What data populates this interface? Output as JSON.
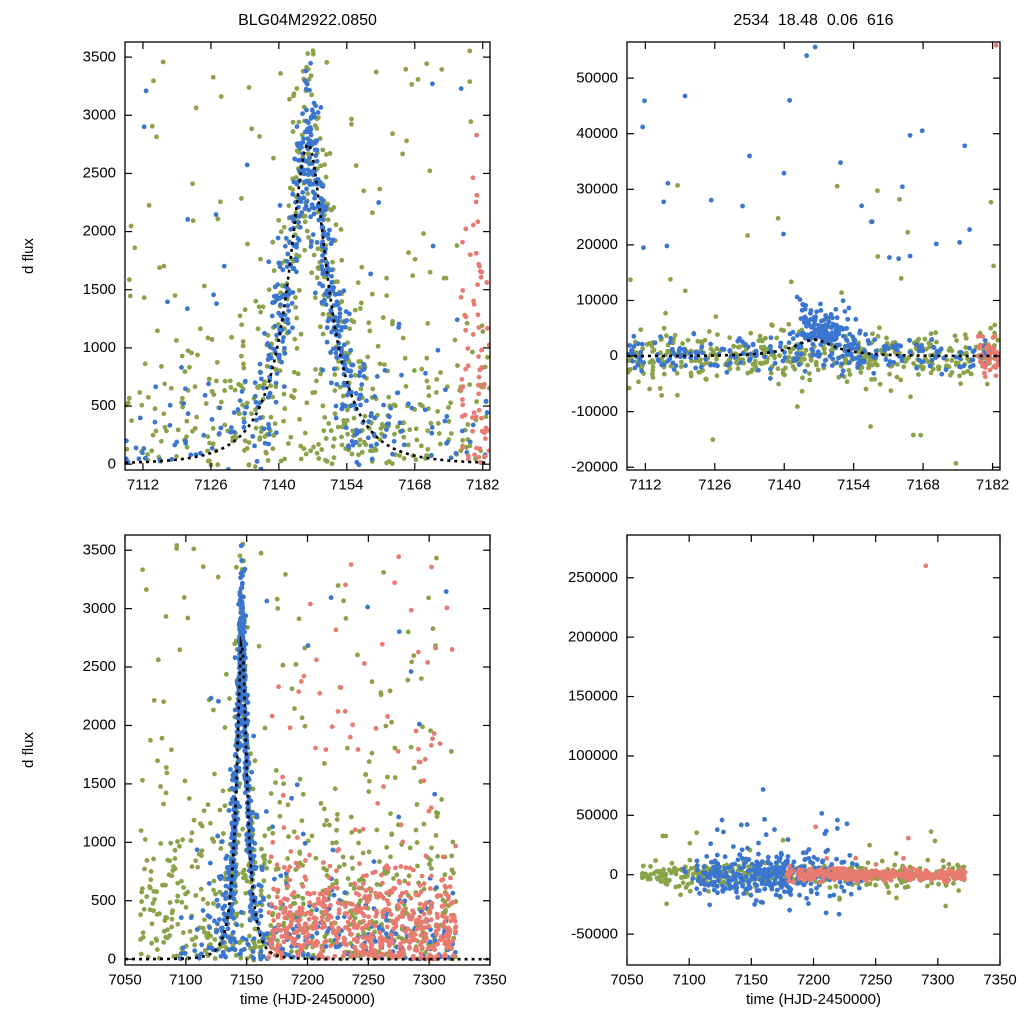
{
  "titles": {
    "top_left": "BLG04M2922.0850",
    "top_right": "2534  18.48  0.06  616"
  },
  "axis_labels": {
    "y": "d flux",
    "x": "time (HJD-2450000)"
  },
  "colors": {
    "blue": "#3a76cf",
    "green": "#8aa248",
    "red": "#e87a70",
    "model": "#000000",
    "frame": "#000000",
    "background": "#ffffff"
  },
  "render": {
    "seed": 7,
    "point_radius": 2.4
  },
  "chart_data": [
    {
      "name": "top-left",
      "type": "scatter",
      "title": "BLG04M2922.0850",
      "ylabel": "d flux",
      "xlabel": null,
      "xlim": [
        7108.3,
        7183.5
      ],
      "ylim": [
        -50,
        3630
      ],
      "xticks": [
        7112,
        7126,
        7140,
        7154,
        7168,
        7182
      ],
      "yticks": [
        0,
        500,
        1000,
        1500,
        2000,
        2500,
        3000,
        3500
      ],
      "model": {
        "t0": 7146,
        "tE": 10,
        "u0": 0.4,
        "fs": 1670,
        "draw": true
      },
      "clusters": [
        {
          "color": "green",
          "n": 250,
          "x": {
            "dist": "uniform",
            "min": 7108.5,
            "max": 7183.4
          },
          "y": {
            "dist": "absgauss",
            "sd": 620
          }
        },
        {
          "color": "green",
          "n": 95,
          "x": {
            "dist": "uniform",
            "min": 7108.5,
            "max": 7183.4
          },
          "y": {
            "dist": "uniform",
            "min": 0,
            "max": 3560
          }
        },
        {
          "color": "green",
          "n": 270,
          "x": {
            "dist": "gauss",
            "mean": 7146,
            "sd": 9,
            "min": 7110,
            "max": 7182
          },
          "y": {
            "dist": "gauss",
            "sd": 620
          },
          "add_model": true,
          "clamp_max": 3560
        },
        {
          "color": "blue",
          "n": 130,
          "x": {
            "dist": "uniform",
            "min": 7108.5,
            "max": 7183.4
          },
          "y": {
            "dist": "absgauss",
            "sd": 300
          },
          "add_model": true
        },
        {
          "color": "blue",
          "n": 380,
          "x": {
            "dist": "gauss",
            "mean": 7147,
            "sd": 5.5,
            "min": 7112,
            "max": 7182
          },
          "y": {
            "dist": "gauss",
            "sd": 330
          },
          "add_model": true,
          "clamp_max": 3560
        },
        {
          "color": "blue",
          "n": 28,
          "x": {
            "dist": "uniform",
            "min": 7112,
            "max": 7182
          },
          "y": {
            "dist": "uniform",
            "min": 300,
            "max": 3400
          }
        },
        {
          "color": "red",
          "n": 60,
          "x": {
            "dist": "uniform",
            "min": 7177.5,
            "max": 7183.4
          },
          "y": {
            "dist": "absgauss",
            "sd": 850
          }
        },
        {
          "color": "red",
          "n": 10,
          "x": {
            "dist": "uniform",
            "min": 7178,
            "max": 7183.4
          },
          "y": {
            "dist": "uniform",
            "min": 1200,
            "max": 2850
          }
        }
      ]
    },
    {
      "name": "top-right",
      "type": "scatter",
      "title": "2534  18.48  0.06  616",
      "ylabel": null,
      "xlabel": null,
      "xlim": [
        7108.3,
        7183.5
      ],
      "ylim": [
        -20500,
        56500
      ],
      "xticks": [
        7112,
        7126,
        7140,
        7154,
        7168,
        7182
      ],
      "yticks": [
        -20000,
        -10000,
        0,
        10000,
        20000,
        30000,
        40000,
        50000
      ],
      "model": {
        "t0": 7146,
        "tE": 10,
        "u0": 0.4,
        "fs": 1800,
        "draw": true
      },
      "clusters": [
        {
          "color": "green",
          "n": 430,
          "x": {
            "dist": "uniform",
            "min": 7108.5,
            "max": 7183.4
          },
          "y": {
            "dist": "gauss",
            "sd": 2300
          }
        },
        {
          "color": "green",
          "n": 34,
          "x": {
            "dist": "uniform",
            "min": 7108.5,
            "max": 7183.4
          },
          "y": {
            "dist": "uniform",
            "min": -20000,
            "max": 31000
          }
        },
        {
          "color": "blue",
          "n": 240,
          "x": {
            "dist": "uniform",
            "min": 7108.5,
            "max": 7183.4
          },
          "y": {
            "dist": "gauss",
            "sd": 1500
          }
        },
        {
          "color": "blue",
          "n": 150,
          "x": {
            "dist": "gauss",
            "mean": 7148,
            "sd": 3.5,
            "min": 7136,
            "max": 7162
          },
          "y": {
            "dist": "absgauss",
            "sd": 3600
          },
          "add_model": true
        },
        {
          "color": "blue",
          "n": 26,
          "x": {
            "dist": "uniform",
            "min": 7110,
            "max": 7183
          },
          "y": {
            "dist": "uniform",
            "min": 12000,
            "max": 47000
          }
        },
        {
          "color": "blue",
          "n": 2,
          "x": {
            "dist": "gauss",
            "mean": 7146.5,
            "sd": 1,
            "min": 7144,
            "max": 7149
          },
          "y": {
            "dist": "uniform",
            "min": 54000,
            "max": 56200
          }
        },
        {
          "color": "red",
          "n": 46,
          "x": {
            "dist": "uniform",
            "min": 7179,
            "max": 7183.4
          },
          "y": {
            "dist": "gauss",
            "sd": 1800
          }
        },
        {
          "color": "red",
          "n": 1,
          "x": {
            "dist": "uniform",
            "min": 7182.6,
            "max": 7183.3
          },
          "y": {
            "dist": "uniform",
            "min": 55300,
            "max": 56200
          }
        }
      ]
    },
    {
      "name": "bottom-left",
      "type": "scatter",
      "title": null,
      "ylabel": "d flux",
      "xlabel": "time (HJD-2450000)",
      "xlim": [
        7050,
        7350
      ],
      "ylim": [
        -50,
        3630
      ],
      "xticks": [
        7050,
        7100,
        7150,
        7200,
        7250,
        7300,
        7350
      ],
      "yticks": [
        0,
        500,
        1000,
        1500,
        2000,
        2500,
        3000,
        3500
      ],
      "model": {
        "t0": 7146,
        "tE": 10,
        "u0": 0.4,
        "fs": 1670,
        "draw": true
      },
      "clusters": [
        {
          "color": "green",
          "n": 520,
          "x": {
            "dist": "uniform",
            "min": 7062,
            "max": 7322
          },
          "y": {
            "dist": "absgauss",
            "sd": 650
          }
        },
        {
          "color": "green",
          "n": 115,
          "x": {
            "dist": "uniform",
            "min": 7062,
            "max": 7322
          },
          "y": {
            "dist": "uniform",
            "min": 0,
            "max": 3560
          }
        },
        {
          "color": "green",
          "n": 120,
          "x": {
            "dist": "gauss",
            "mean": 7146,
            "sd": 6,
            "min": 7120,
            "max": 7175
          },
          "y": {
            "dist": "gauss",
            "sd": 520
          },
          "add_model": true,
          "clamp_max": 3560
        },
        {
          "color": "blue",
          "n": 470,
          "x": {
            "dist": "gauss",
            "mean": 7145.5,
            "sd": 5,
            "min": 7124,
            "max": 7170
          },
          "y": {
            "dist": "gauss",
            "sd": 320
          },
          "add_model": true,
          "clamp_max": 3560
        },
        {
          "color": "blue",
          "n": 120,
          "x": {
            "dist": "gauss",
            "mean": 7145,
            "sd": 12,
            "min": 7100,
            "max": 7188
          },
          "y": {
            "dist": "absgauss",
            "sd": 520
          },
          "add_model": true
        },
        {
          "color": "blue",
          "n": 200,
          "x": {
            "dist": "uniform",
            "min": 7095,
            "max": 7322
          },
          "y": {
            "dist": "absgauss",
            "sd": 320
          }
        },
        {
          "color": "blue",
          "n": 24,
          "x": {
            "dist": "uniform",
            "min": 7100,
            "max": 7322
          },
          "y": {
            "dist": "uniform",
            "min": 500,
            "max": 3200
          }
        },
        {
          "color": "red",
          "n": 520,
          "x": {
            "dist": "uniform",
            "min": 7168,
            "max": 7322
          },
          "y": {
            "dist": "absgauss",
            "sd": 390
          }
        },
        {
          "color": "red",
          "n": 75,
          "x": {
            "dist": "uniform",
            "min": 7170,
            "max": 7322
          },
          "y": {
            "dist": "uniform",
            "min": 0,
            "max": 3480
          }
        }
      ]
    },
    {
      "name": "bottom-right",
      "type": "scatter",
      "title": null,
      "ylabel": null,
      "xlabel": "time (HJD-2450000)",
      "xlim": [
        7050,
        7350
      ],
      "ylim": [
        -76000,
        286000
      ],
      "xticks": [
        7050,
        7100,
        7150,
        7200,
        7250,
        7300,
        7350
      ],
      "yticks": [
        -50000,
        0,
        50000,
        100000,
        150000,
        200000,
        250000
      ],
      "model": null,
      "clusters": [
        {
          "color": "green",
          "n": 380,
          "x": {
            "dist": "uniform",
            "min": 7062,
            "max": 7322
          },
          "y": {
            "dist": "gauss",
            "sd": 5200
          }
        },
        {
          "color": "green",
          "n": 24,
          "x": {
            "dist": "uniform",
            "min": 7062,
            "max": 7322
          },
          "y": {
            "dist": "uniform",
            "min": -30000,
            "max": 52000
          }
        },
        {
          "color": "blue",
          "n": 340,
          "x": {
            "dist": "gauss",
            "mean": 7165,
            "sd": 38,
            "min": 7095,
            "max": 7240
          },
          "y": {
            "dist": "gauss",
            "sd": 9000
          }
        },
        {
          "color": "blue",
          "n": 20,
          "x": {
            "dist": "uniform",
            "min": 7110,
            "max": 7235
          },
          "y": {
            "dist": "uniform",
            "min": 15000,
            "max": 55000
          }
        },
        {
          "color": "blue",
          "n": 1,
          "x": {
            "dist": "uniform",
            "min": 7158,
            "max": 7162
          },
          "y": {
            "dist": "uniform",
            "min": 70000,
            "max": 75000
          }
        },
        {
          "color": "blue",
          "n": 4,
          "x": {
            "dist": "uniform",
            "min": 7120,
            "max": 7220
          },
          "y": {
            "dist": "uniform",
            "min": -32000,
            "max": -15000
          }
        },
        {
          "color": "red",
          "n": 330,
          "x": {
            "dist": "uniform",
            "min": 7178,
            "max": 7322
          },
          "y": {
            "dist": "gauss",
            "sd": 2600
          }
        },
        {
          "color": "red",
          "n": 6,
          "x": {
            "dist": "uniform",
            "min": 7200,
            "max": 7320
          },
          "y": {
            "dist": "uniform",
            "min": 8000,
            "max": 42000
          }
        },
        {
          "color": "red",
          "n": 1,
          "x": {
            "dist": "uniform",
            "min": 7286,
            "max": 7292
          },
          "y": {
            "dist": "uniform",
            "min": 256000,
            "max": 262000
          }
        }
      ]
    }
  ]
}
